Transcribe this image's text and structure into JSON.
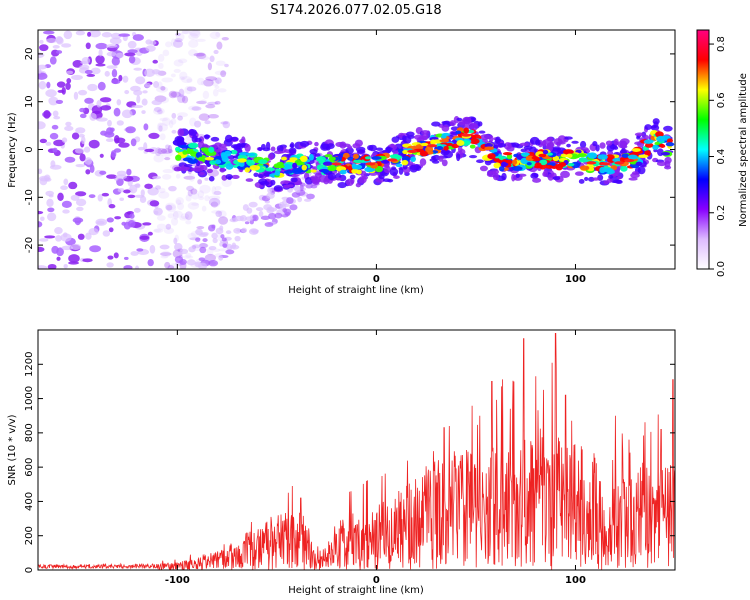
{
  "title": "S174.2026.077.02.05.G18",
  "chart_data": [
    {
      "type": "heatmap",
      "xlabel": "Height of straight line (km)",
      "ylabel": "Frequency (Hz)",
      "xlim": [
        -170,
        150
      ],
      "ylim": [
        -25,
        25
      ],
      "xticks": [
        -100,
        0,
        100
      ],
      "yticks": [
        -20,
        -10,
        0,
        10,
        20
      ],
      "colorbar": {
        "label": "Normalized spectral amplitude",
        "range": [
          0,
          0.85
        ],
        "ticks": [
          0.0,
          0.2,
          0.4,
          0.6,
          0.8
        ],
        "colors": [
          "#ffffff",
          "#ddbbff",
          "#8800ff",
          "#0000ff",
          "#00ffff",
          "#00ff00",
          "#ffff00",
          "#ff0000",
          "#ff0080"
        ]
      },
      "signal_ridge": {
        "x": [
          -100,
          -90,
          -80,
          -70,
          -60,
          -50,
          -40,
          -30,
          -20,
          -10,
          0,
          10,
          20,
          30,
          40,
          45,
          50,
          55,
          60,
          70,
          80,
          90,
          100,
          110,
          120,
          130,
          140,
          148
        ],
        "frequency": [
          0,
          -1,
          -2,
          -2,
          -3,
          -4,
          -3,
          -3,
          -3,
          -3,
          -3,
          -2,
          0,
          1,
          2,
          3,
          2,
          0,
          -2,
          -3,
          -2,
          -2,
          -2,
          -3,
          -3,
          -2,
          2,
          0
        ]
      },
      "noise_region_x": [
        -170,
        -100
      ]
    },
    {
      "type": "line",
      "xlabel": "Height of straight line (km)",
      "ylabel": "SNR (10 * v/v)",
      "xlim": [
        -170,
        150
      ],
      "ylim": [
        0,
        1400
      ],
      "xticks": [
        -100,
        0,
        100
      ],
      "yticks": [
        0,
        200,
        400,
        600,
        800,
        1000,
        1200
      ],
      "line_color": "#ee2222",
      "envelope": {
        "x": [
          -170,
          -110,
          -100,
          -90,
          -80,
          -70,
          -60,
          -50,
          -45,
          -40,
          -35,
          -30,
          -25,
          -20,
          -10,
          0,
          10,
          20,
          30,
          40,
          50,
          60,
          70,
          75,
          80,
          90,
          100,
          110,
          115,
          120,
          130,
          140,
          150
        ],
        "y": [
          25,
          30,
          40,
          60,
          100,
          160,
          220,
          280,
          300,
          320,
          260,
          100,
          150,
          240,
          300,
          340,
          400,
          480,
          580,
          600,
          620,
          640,
          660,
          700,
          700,
          700,
          640,
          620,
          300,
          460,
          560,
          520,
          540
        ]
      },
      "peaks": [
        {
          "x": -53,
          "y": 310
        },
        {
          "x": -38,
          "y": 420
        },
        {
          "x": -5,
          "y": 520
        },
        {
          "x": 34,
          "y": 830
        },
        {
          "x": 52,
          "y": 900
        },
        {
          "x": 58,
          "y": 1100
        },
        {
          "x": 74,
          "y": 1350
        },
        {
          "x": 80,
          "y": 1130
        },
        {
          "x": 90,
          "y": 1380
        },
        {
          "x": 95,
          "y": 1020
        },
        {
          "x": 120,
          "y": 900
        },
        {
          "x": 143,
          "y": 820
        },
        {
          "x": 149,
          "y": 1110
        }
      ]
    }
  ]
}
